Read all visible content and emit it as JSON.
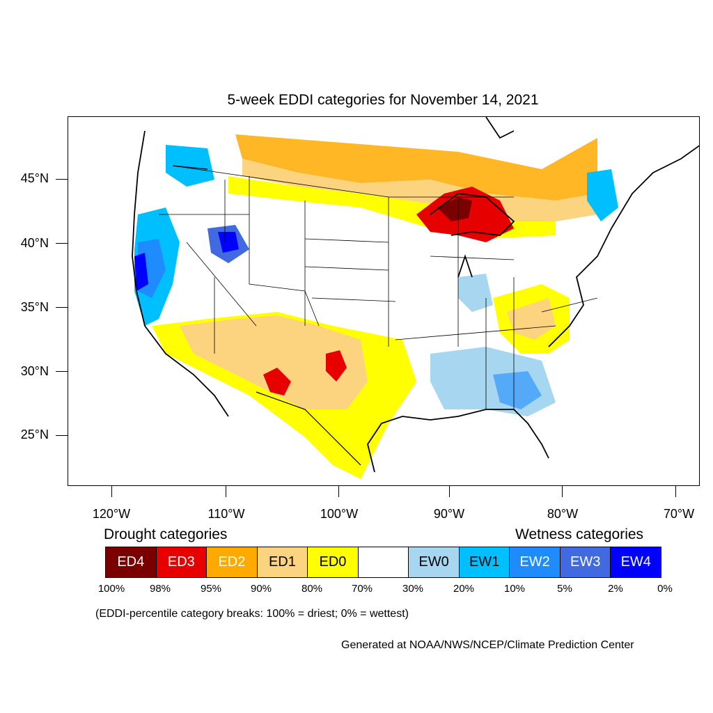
{
  "title": "5-week EDDI categories for November 14, 2021",
  "lat_labels": [
    "45°N",
    "40°N",
    "35°N",
    "30°N",
    "25°N"
  ],
  "lon_labels": [
    "120°W",
    "110°W",
    "100°W",
    "90°W",
    "80°W",
    "70°W"
  ],
  "legend": {
    "drought_heading": "Drought categories",
    "wetness_heading": "Wetness categories",
    "categories": [
      {
        "label": "ED4",
        "color": "#7a0000",
        "text_color": "#ffffff"
      },
      {
        "label": "ED3",
        "color": "#e60000",
        "text_color": "#ffffff"
      },
      {
        "label": "ED2",
        "color": "#ffaa00",
        "text_color": "#ffffff"
      },
      {
        "label": "ED1",
        "color": "#fcd37f",
        "text_color": "#000000"
      },
      {
        "label": "ED0",
        "color": "#ffff00",
        "text_color": "#000000"
      },
      {
        "label": "",
        "color": "#ffffff",
        "text_color": "#000000"
      },
      {
        "label": "EW0",
        "color": "#a6d6f0",
        "text_color": "#000000"
      },
      {
        "label": "EW1",
        "color": "#00bfff",
        "text_color": "#000000"
      },
      {
        "label": "EW2",
        "color": "#1e8cff",
        "text_color": "#ffffff"
      },
      {
        "label": "EW3",
        "color": "#4169e1",
        "text_color": "#ffffff"
      },
      {
        "label": "EW4",
        "color": "#0000ff",
        "text_color": "#ffffff"
      }
    ],
    "breaks": [
      "100%",
      "98%",
      "95%",
      "90%",
      "80%",
      "70%",
      "30%",
      "20%",
      "10%",
      "5%",
      "2%",
      "0%"
    ]
  },
  "note": "(EDDI-percentile category breaks: 100% = driest; 0% = wettest)",
  "credit": "Generated at NOAA/NWS/NCEP/Climate Prediction Center"
}
